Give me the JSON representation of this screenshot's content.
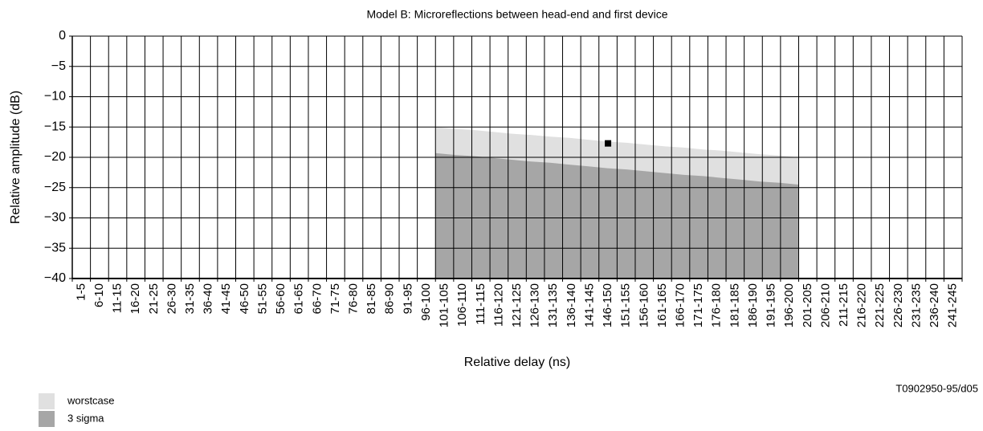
{
  "chart_data": {
    "type": "area",
    "title": "Model B: Microreflections between head-end and first device",
    "x_label": "Relative delay (ns)",
    "y_label": "Relative amplitude (dB)",
    "note": "T0902950-95/d05",
    "categories": [
      "1-5",
      "6-10",
      "11-15",
      "16-20",
      "21-25",
      "26-30",
      "31-35",
      "36-40",
      "41-45",
      "46-50",
      "51-55",
      "56-60",
      "61-65",
      "66-70",
      "71-75",
      "76-80",
      "81-85",
      "86-90",
      "91-95",
      "96-100",
      "101-105",
      "106-110",
      "111-115",
      "116-120",
      "121-125",
      "126-130",
      "131-135",
      "136-140",
      "141-145",
      "146-150",
      "151-155",
      "156-160",
      "161-165",
      "166-170",
      "171-175",
      "176-180",
      "181-185",
      "186-190",
      "191-195",
      "196-200",
      "201-205",
      "206-210",
      "211-215",
      "216-220",
      "221-225",
      "226-230",
      "231-235",
      "236-240",
      "241-245"
    ],
    "series": [
      {
        "name": "worstcase",
        "color": "#e0e0e0",
        "values": [
          null,
          null,
          null,
          null,
          null,
          null,
          null,
          null,
          null,
          null,
          null,
          null,
          null,
          null,
          null,
          null,
          null,
          null,
          null,
          null,
          -15,
          -15.3,
          -15.5,
          -15.8,
          -16.1,
          -16.3,
          -16.6,
          -16.8,
          -17.1,
          -17.4,
          -17.6,
          -17.9,
          -18.2,
          -18.4,
          -18.7,
          -18.9,
          -19.2,
          -19.5,
          -19.7,
          -20,
          null,
          null,
          null,
          null,
          null,
          null,
          null,
          null,
          null
        ]
      },
      {
        "name": "3 sigma",
        "color": "#a6a6a6",
        "values": [
          null,
          null,
          null,
          null,
          null,
          null,
          null,
          null,
          null,
          null,
          null,
          null,
          null,
          null,
          null,
          null,
          null,
          null,
          null,
          null,
          -19.3,
          -19.6,
          -19.8,
          -20.1,
          -20.4,
          -20.7,
          -20.9,
          -21.2,
          -21.5,
          -21.8,
          -22,
          -22.3,
          -22.6,
          -22.9,
          -23.1,
          -23.4,
          -23.7,
          -24,
          -24.2,
          -24.5,
          null,
          null,
          null,
          null,
          null,
          null,
          null,
          null,
          null
        ]
      }
    ],
    "points": {
      "color": "#000000",
      "marker": "square",
      "values": [
        null,
        null,
        null,
        null,
        null,
        null,
        null,
        null,
        null,
        null,
        null,
        null,
        null,
        null,
        null,
        null,
        null,
        null,
        null,
        null,
        null,
        null,
        null,
        null,
        null,
        null,
        null,
        null,
        null,
        -17.7,
        null,
        null,
        null,
        null,
        null,
        null,
        null,
        null,
        null,
        null,
        null,
        null,
        null,
        null,
        null,
        null,
        null,
        null,
        null
      ]
    },
    "ylim": [
      -40,
      0
    ],
    "yticks": [
      0,
      {
        "value": -5,
        "label": "−5"
      },
      {
        "value": -10,
        "label": "−10"
      },
      {
        "value": -15,
        "label": "−15"
      },
      {
        "value": -20,
        "label": "−20"
      },
      {
        "value": -25,
        "label": "−25"
      },
      {
        "value": -30,
        "label": "−30"
      },
      {
        "value": -35,
        "label": "−35"
      },
      {
        "value": -40,
        "label": "−40"
      }
    ],
    "grid": true
  }
}
